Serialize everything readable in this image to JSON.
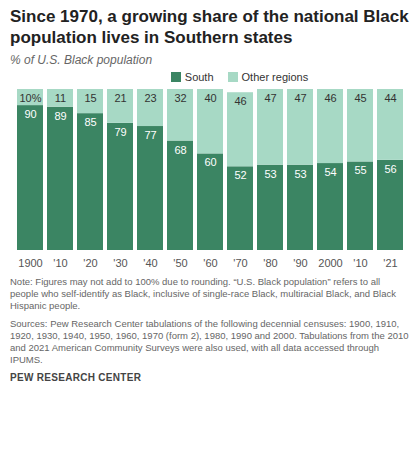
{
  "chart_data": {
    "type": "bar",
    "title": "Since 1970, a growing share of the national Black population lives in Southern states",
    "subtitle": "% of U.S. Black population",
    "categories": [
      "1900",
      "'10",
      "'20",
      "'30",
      "'40",
      "'50",
      "'60",
      "'70",
      "'80",
      "'90",
      "2000",
      "'10",
      "'21"
    ],
    "series": [
      {
        "name": "South",
        "color": "#3b8563",
        "values": [
          90,
          89,
          85,
          79,
          77,
          68,
          60,
          52,
          53,
          53,
          54,
          55,
          56
        ]
      },
      {
        "name": "Other regions",
        "color": "#a7d9c5",
        "values": [
          10,
          11,
          15,
          21,
          23,
          32,
          40,
          46,
          47,
          47,
          46,
          45,
          44
        ],
        "value_labels": [
          "10%",
          "11",
          "15",
          "21",
          "23",
          "32",
          "40",
          "46",
          "47",
          "47",
          "46",
          "45",
          "44"
        ]
      }
    ],
    "stacked": true,
    "data_labels": true,
    "legend": "top",
    "ylim": [
      0,
      100
    ],
    "tick_labels": "x",
    "note": "Note: Figures may not add to 100% due to rounding. “U.S. Black population” refers to all people who self-identify as Black, inclusive of single-race Black, multiracial Black, and Black Hispanic people.",
    "source": "Sources: Pew Research Center tabulations of the following decennial censuses: 1900, 1910, 1920, 1930, 1940, 1950, 1960, 1970 (form 2), 1980, 1990 and 2000. Tabulations from the 2010 and 2021 American Community Surveys were also used, with all data accessed through IPUMS.",
    "credit": "PEW RESEARCH CENTER"
  }
}
